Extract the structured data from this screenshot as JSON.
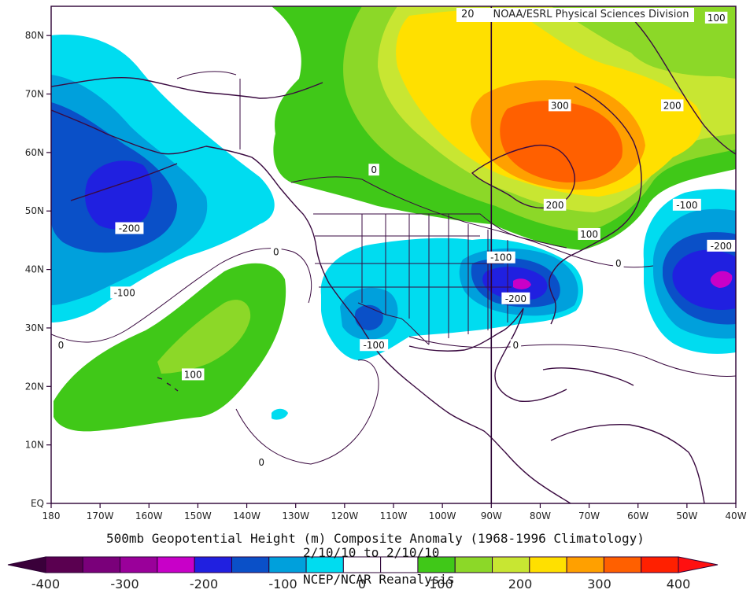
{
  "credit": "NOAA/ESRL Physical Sciences Division",
  "credit_cut": "20",
  "title": "500mb Geopotential Height (m) Composite Anomaly (1968-1996 Climatology)",
  "date_range": "2/10/10  to 2/10/10",
  "source": "NCEP/NCAR Reanalysis",
  "map": {
    "lon_min": -180,
    "lon_max": -40,
    "lat_min": 0,
    "lat_max": 85,
    "lon_ticks": [
      {
        "v": -180,
        "label": "180"
      },
      {
        "v": -170,
        "label": "170W"
      },
      {
        "v": -160,
        "label": "160W"
      },
      {
        "v": -150,
        "label": "150W"
      },
      {
        "v": -140,
        "label": "140W"
      },
      {
        "v": -130,
        "label": "130W"
      },
      {
        "v": -120,
        "label": "120W"
      },
      {
        "v": -110,
        "label": "110W"
      },
      {
        "v": -100,
        "label": "100W"
      },
      {
        "v": -90,
        "label": "90W"
      },
      {
        "v": -80,
        "label": "80W"
      },
      {
        "v": -70,
        "label": "70W"
      },
      {
        "v": -60,
        "label": "60W"
      },
      {
        "v": -50,
        "label": "50W"
      },
      {
        "v": -40,
        "label": "40W"
      }
    ],
    "lat_ticks": [
      {
        "v": 0,
        "label": "EQ"
      },
      {
        "v": 10,
        "label": "10N"
      },
      {
        "v": 20,
        "label": "20N"
      },
      {
        "v": 30,
        "label": "30N"
      },
      {
        "v": 40,
        "label": "40N"
      },
      {
        "v": 50,
        "label": "50N"
      },
      {
        "v": 60,
        "label": "60N"
      },
      {
        "v": 70,
        "label": "70N"
      },
      {
        "v": 80,
        "label": "80N"
      }
    ],
    "reference_meridian": -90,
    "contour_labels": [
      {
        "text": "-200",
        "lon": -164,
        "lat": 47
      },
      {
        "text": "-100",
        "lon": -165,
        "lat": 36
      },
      {
        "text": "0",
        "lon": -178,
        "lat": 27
      },
      {
        "text": "100",
        "lon": -151,
        "lat": 22
      },
      {
        "text": "0",
        "lon": -134,
        "lat": 43
      },
      {
        "text": "0",
        "lon": -137,
        "lat": 7
      },
      {
        "text": "0",
        "lon": -114,
        "lat": 57
      },
      {
        "text": "-100",
        "lon": -114,
        "lat": 27
      },
      {
        "text": "-100",
        "lon": -88,
        "lat": 42
      },
      {
        "text": "-200",
        "lon": -85,
        "lat": 35
      },
      {
        "text": "0",
        "lon": -85,
        "lat": 27
      },
      {
        "text": "300",
        "lon": -76,
        "lat": 68
      },
      {
        "text": "200",
        "lon": -77,
        "lat": 51
      },
      {
        "text": "100",
        "lon": -70,
        "lat": 46
      },
      {
        "text": "0",
        "lon": -64,
        "lat": 41
      },
      {
        "text": "200",
        "lon": -53,
        "lat": 68
      },
      {
        "text": "100",
        "lon": -44,
        "lat": 83
      },
      {
        "text": "-100",
        "lon": -50,
        "lat": 51
      },
      {
        "text": "-200",
        "lon": -43,
        "lat": 44
      }
    ]
  },
  "colorbar": {
    "colors": [
      "#5a0050",
      "#7a007a",
      "#9a009a",
      "#c800c8",
      "#2020e0",
      "#0a50c8",
      "#00a0dc",
      "#00dcf0",
      "#ffffff",
      "#ffffff",
      "#40c818",
      "#8cd828",
      "#c8e632",
      "#ffe000",
      "#ffa000",
      "#ff6000",
      "#ff2000"
    ],
    "tick_values": [
      -400,
      -300,
      -200,
      -100,
      0,
      100,
      200,
      300,
      400
    ],
    "tick_labels": [
      "-400",
      "-300",
      "-200",
      "-100",
      "0",
      "100",
      "200",
      "300",
      "400"
    ],
    "min": -400,
    "max": 400
  },
  "anomaly_palette": {
    "neg300": "#c800c8",
    "neg250": "#2020e0",
    "neg200": "#0a50c8",
    "neg150": "#00a0dc",
    "neg100": "#00dcf0",
    "pos100": "#40c818",
    "pos150": "#8cd828",
    "pos200": "#c8e632",
    "pos250": "#ffe000",
    "pos300": "#ffa000",
    "pos350": "#ff6000",
    "contour": "#3a0a40",
    "coast": "#3a0a40"
  }
}
